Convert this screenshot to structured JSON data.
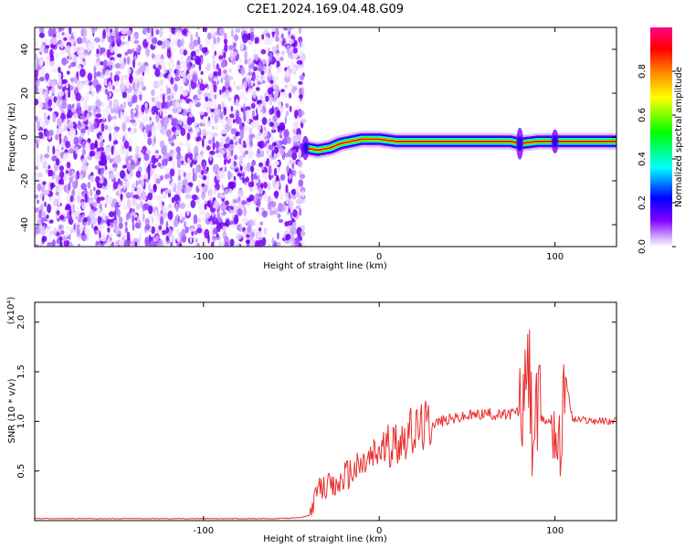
{
  "title": "C2E1.2024.169.04.48.G09",
  "chart_data": [
    {
      "type": "heatmap",
      "xlabel": "Height of straight line (km)",
      "ylabel": "Frequency (Hz)",
      "xlim": [
        -196,
        135
      ],
      "ylim": [
        -50,
        50
      ],
      "x_ticks": [
        -100,
        0,
        100
      ],
      "y_ticks": [
        -40,
        -20,
        0,
        20,
        40
      ],
      "colorbar": {
        "label": "Normalized spectral amplitude",
        "range": [
          0,
          1
        ],
        "ticks": [
          "0.0",
          "0.2",
          "0.4",
          "0.6",
          "0.8"
        ],
        "colormap": [
          "#ffffff",
          "#cc99ff",
          "#8000ff",
          "#0000ff",
          "#00ffff",
          "#00ff00",
          "#ffff00",
          "#ff8000",
          "#ff0000",
          "#ff0080"
        ]
      },
      "noise_region_x": [
        -196,
        -43
      ],
      "ridge": [
        {
          "x": -42,
          "y": -5
        },
        {
          "x": -35,
          "y": -6
        },
        {
          "x": -28,
          "y": -5
        },
        {
          "x": -22,
          "y": -3
        },
        {
          "x": -16,
          "y": -2
        },
        {
          "x": -10,
          "y": -1
        },
        {
          "x": -5,
          "y": -1
        },
        {
          "x": 0,
          "y": -1
        },
        {
          "x": 10,
          "y": -2
        },
        {
          "x": 30,
          "y": -2
        },
        {
          "x": 60,
          "y": -2
        },
        {
          "x": 75,
          "y": -2
        },
        {
          "x": 80,
          "y": -3
        },
        {
          "x": 90,
          "y": -2
        },
        {
          "x": 100,
          "y": -2
        },
        {
          "x": 110,
          "y": -2
        },
        {
          "x": 135,
          "y": -2
        }
      ]
    },
    {
      "type": "line",
      "xlabel": "Height of straight line (km)",
      "ylabel": "SNR (10 * v/v)",
      "y_multiplier": "(x10⁴)",
      "xlim": [
        -196,
        135
      ],
      "ylim": [
        0,
        2.2
      ],
      "x_ticks": [
        -100,
        0,
        100
      ],
      "y_ticks": [
        "0.5",
        "1.0",
        "1.5",
        "2.0"
      ],
      "series": [
        {
          "color": "#e83030",
          "x": [
            -196,
            -150,
            -100,
            -60,
            -45,
            -40,
            -35,
            -30,
            -25,
            -20,
            -15,
            -10,
            -5,
            0,
            5,
            10,
            15,
            20,
            25,
            30,
            40,
            50,
            60,
            70,
            75,
            80,
            83,
            85,
            87,
            90,
            95,
            100,
            103,
            105,
            110,
            120,
            135
          ],
          "y": [
            0.02,
            0.02,
            0.02,
            0.02,
            0.03,
            0.05,
            0.3,
            0.35,
            0.32,
            0.45,
            0.5,
            0.55,
            0.62,
            0.7,
            0.75,
            0.8,
            0.86,
            0.9,
            0.95,
            0.98,
            1.02,
            1.05,
            1.08,
            1.06,
            1.08,
            1.1,
            1.2,
            1.6,
            0.9,
            1.05,
            1.0,
            1.0,
            0.6,
            1.55,
            1.02,
            1.01,
            1.0
          ]
        }
      ]
    }
  ]
}
